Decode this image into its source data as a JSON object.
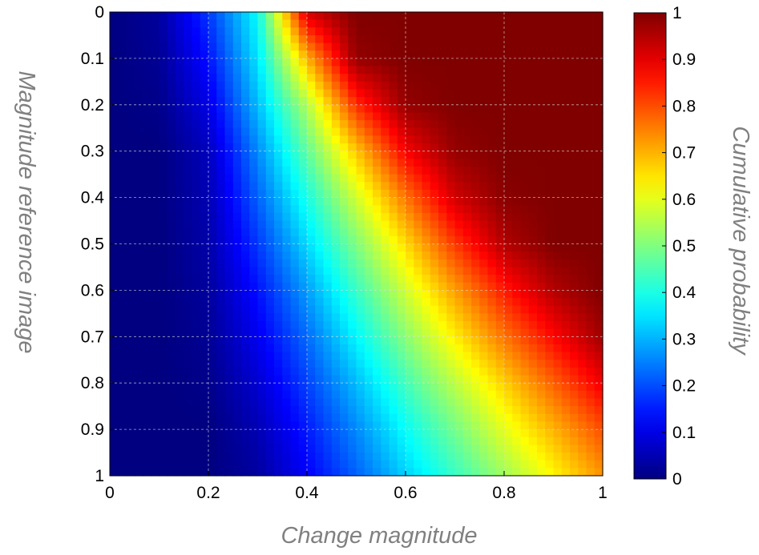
{
  "chart_data": {
    "type": "heatmap",
    "title": "",
    "xlabel": "Change magnitude",
    "ylabel": "Magnitude reference image",
    "colorbar_label": "Cumulative probability",
    "xlim": [
      0,
      1
    ],
    "ylim": [
      0,
      1
    ],
    "y_direction": "reversed",
    "grid": true,
    "x_ticks": [
      "0",
      "0.2",
      "0.4",
      "0.6",
      "0.8",
      "1"
    ],
    "y_ticks": [
      "0",
      "0.1",
      "0.2",
      "0.3",
      "0.4",
      "0.5",
      "0.6",
      "0.7",
      "0.8",
      "0.9",
      "1"
    ],
    "colorbar_ticks": [
      "0",
      "0.1",
      "0.2",
      "0.3",
      "0.4",
      "0.5",
      "0.6",
      "0.7",
      "0.8",
      "0.9",
      "1"
    ],
    "colorbar_range": [
      0,
      1
    ],
    "colormap": "jet",
    "x": [
      0,
      0.1,
      0.2,
      0.3,
      0.4,
      0.5,
      0.6,
      0.7,
      0.8,
      0.9,
      1
    ],
    "y": [
      0,
      0.1,
      0.2,
      0.3,
      0.4,
      0.5,
      0.6,
      0.7,
      0.8,
      0.9,
      1
    ],
    "z": [
      [
        0.0,
        0.03,
        0.18,
        0.38,
        0.92,
        1.0,
        1.0,
        1.0,
        1.0,
        1.0,
        1.0
      ],
      [
        0.0,
        0.02,
        0.14,
        0.35,
        0.7,
        0.98,
        1.0,
        1.0,
        1.0,
        1.0,
        1.0
      ],
      [
        0.0,
        0.01,
        0.1,
        0.31,
        0.55,
        0.83,
        0.98,
        1.0,
        1.0,
        1.0,
        1.0
      ],
      [
        0.0,
        0.0,
        0.06,
        0.26,
        0.47,
        0.68,
        0.88,
        0.98,
        1.0,
        1.0,
        1.0
      ],
      [
        0.0,
        0.0,
        0.05,
        0.22,
        0.4,
        0.58,
        0.76,
        0.92,
        0.99,
        1.0,
        1.0
      ],
      [
        0.0,
        0.0,
        0.04,
        0.18,
        0.34,
        0.5,
        0.66,
        0.82,
        0.95,
        1.0,
        1.0
      ],
      [
        0.0,
        0.0,
        0.03,
        0.14,
        0.28,
        0.43,
        0.58,
        0.72,
        0.85,
        0.95,
        1.0
      ],
      [
        0.0,
        0.0,
        0.02,
        0.11,
        0.23,
        0.37,
        0.51,
        0.64,
        0.76,
        0.87,
        0.97
      ],
      [
        0.0,
        0.0,
        0.01,
        0.08,
        0.19,
        0.31,
        0.44,
        0.56,
        0.67,
        0.78,
        0.89
      ],
      [
        0.0,
        0.0,
        0.0,
        0.05,
        0.15,
        0.26,
        0.38,
        0.49,
        0.6,
        0.7,
        0.8
      ],
      [
        0.0,
        0.0,
        0.0,
        0.03,
        0.12,
        0.22,
        0.33,
        0.43,
        0.53,
        0.63,
        0.73
      ]
    ]
  }
}
